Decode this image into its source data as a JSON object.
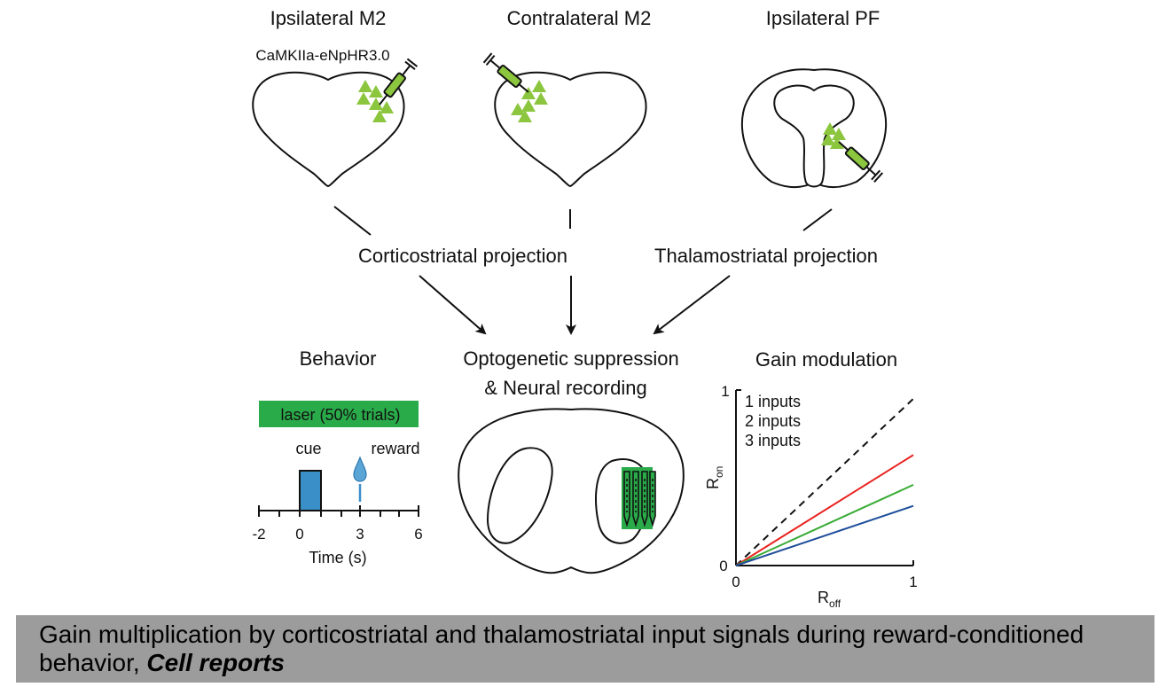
{
  "colors": {
    "neuron": "#8cc63f",
    "laser": "#2aab4a",
    "cue": "#3a8fc8",
    "line_1": "#e8211d",
    "line_2": "#3aac37",
    "line_3": "#1f4e9a"
  },
  "regions": {
    "ipsi_m2": "Ipsilateral M2",
    "contra_m2": "Contralateral M2",
    "ipsi_pf": "Ipsilateral PF",
    "virus": "CaMKIIa-eNpHR3.0"
  },
  "projections": {
    "cortico": "Corticostriatal projection",
    "thalamo": "Thalamostriatal projection"
  },
  "behavior": {
    "title": "Behavior",
    "laser": "laser (50% trials)",
    "cue": "cue",
    "reward": "reward",
    "ticks": [
      "-2",
      "0",
      "3",
      "6"
    ],
    "xlabel": "Time (s)"
  },
  "recording": {
    "line1": "Optogenetic suppression",
    "line2": "& Neural recording"
  },
  "chart_data": {
    "type": "line",
    "title": "Gain modulation",
    "xlabel_main": "R",
    "xlabel_sub": "off",
    "ylabel_main": "R",
    "ylabel_sub": "on",
    "xlim": [
      0,
      1
    ],
    "ylim": [
      0,
      1
    ],
    "x_ticks": [
      "0",
      "1"
    ],
    "y_ticks": [
      "0",
      "1"
    ],
    "identity_line": {
      "x": [
        0,
        1
      ],
      "y": [
        0,
        0.95
      ],
      "style": "dashed"
    },
    "series": [
      {
        "name": "1 inputs",
        "x": [
          0,
          1
        ],
        "y": [
          0,
          0.63
        ]
      },
      {
        "name": "2 inputs",
        "x": [
          0,
          1
        ],
        "y": [
          0,
          0.46
        ]
      },
      {
        "name": "3 inputs",
        "x": [
          0,
          1
        ],
        "y": [
          0,
          0.34
        ]
      }
    ]
  },
  "footer": {
    "text": "Gain multiplication by corticostriatal and thalamostriatal input signals during reward-conditioned behavior,",
    "journal": "Cell reports"
  }
}
